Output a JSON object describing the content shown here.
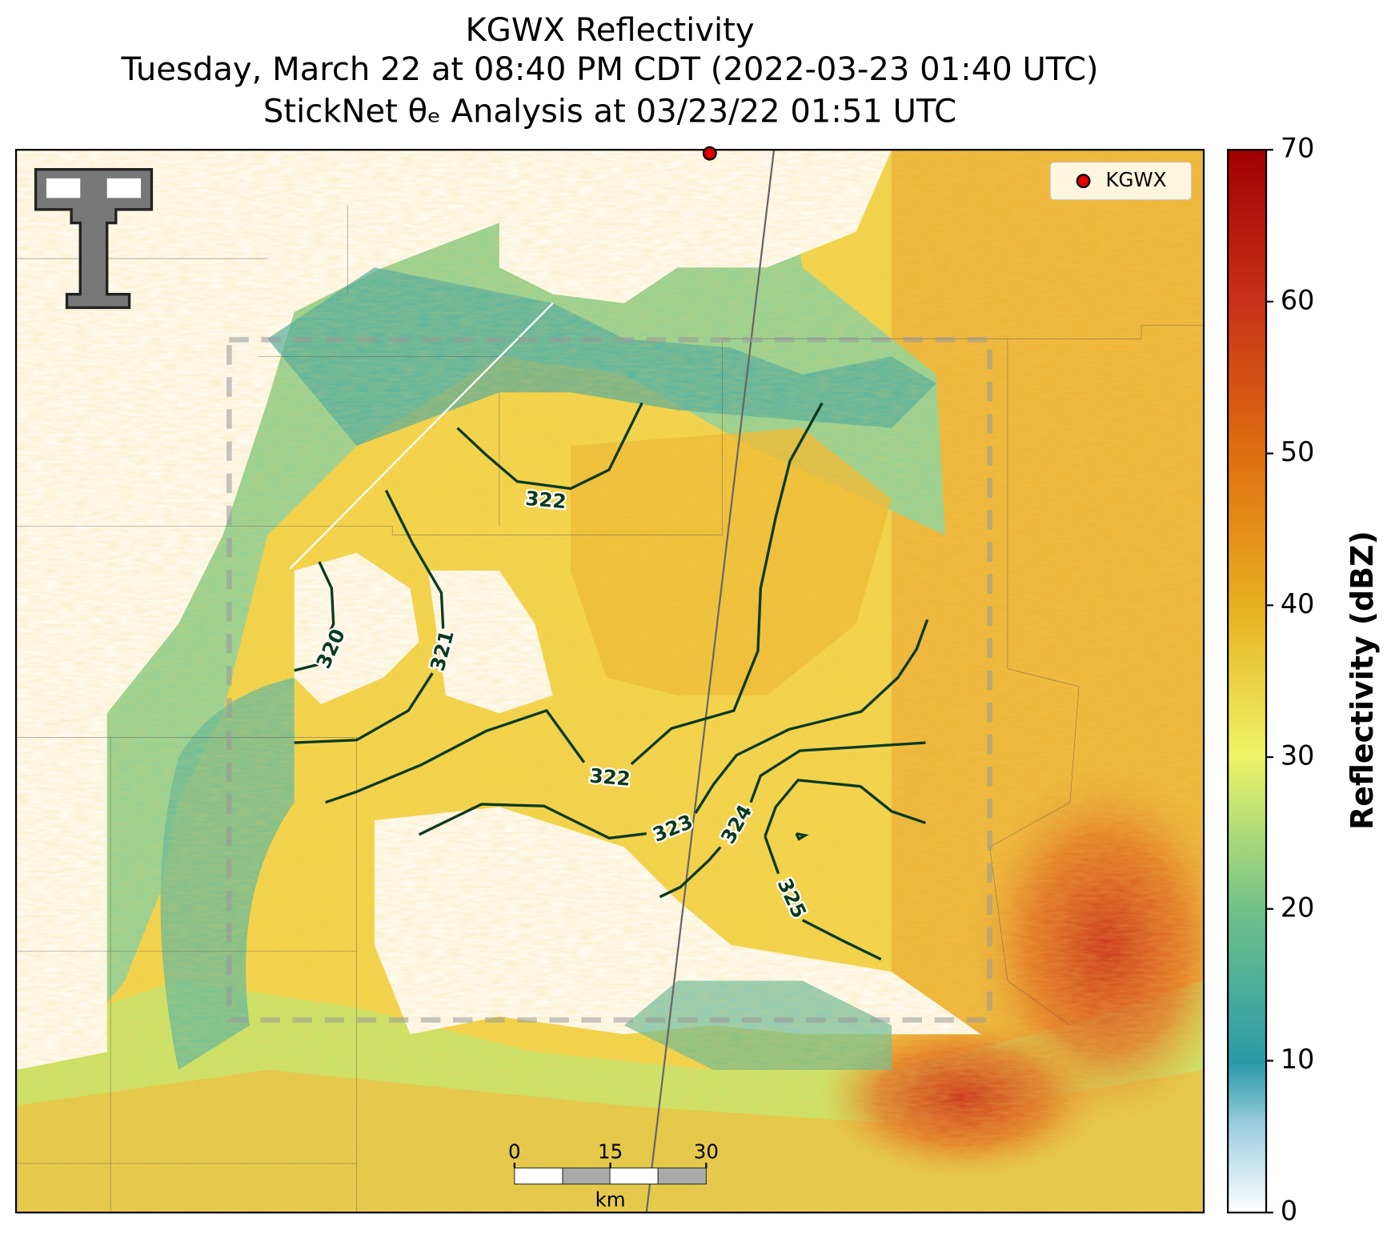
{
  "title": {
    "line1": "KGWX Reflectivity",
    "line2": "Tuesday, March 22 at 08:40 PM CDT (2022-03-23 01:40 UTC)",
    "line3": "StickNet θₑ Analysis at 03/23/22 01:51 UTC"
  },
  "legend": {
    "label": "KGWX",
    "color": "#e00000"
  },
  "colorbar": {
    "label": "Reflectivity (dBZ)",
    "lim": [
      0,
      70
    ],
    "ticks": [
      0,
      10,
      20,
      30,
      40,
      50,
      60,
      70
    ]
  },
  "contours": [
    {
      "level": 322
    },
    {
      "level": 321
    },
    {
      "level": 320
    },
    {
      "level": 322
    },
    {
      "level": 323
    },
    {
      "level": 324
    },
    {
      "level": 325
    }
  ],
  "scale_bar": {
    "ticks": [
      0,
      15,
      30
    ],
    "unit": "km"
  }
}
